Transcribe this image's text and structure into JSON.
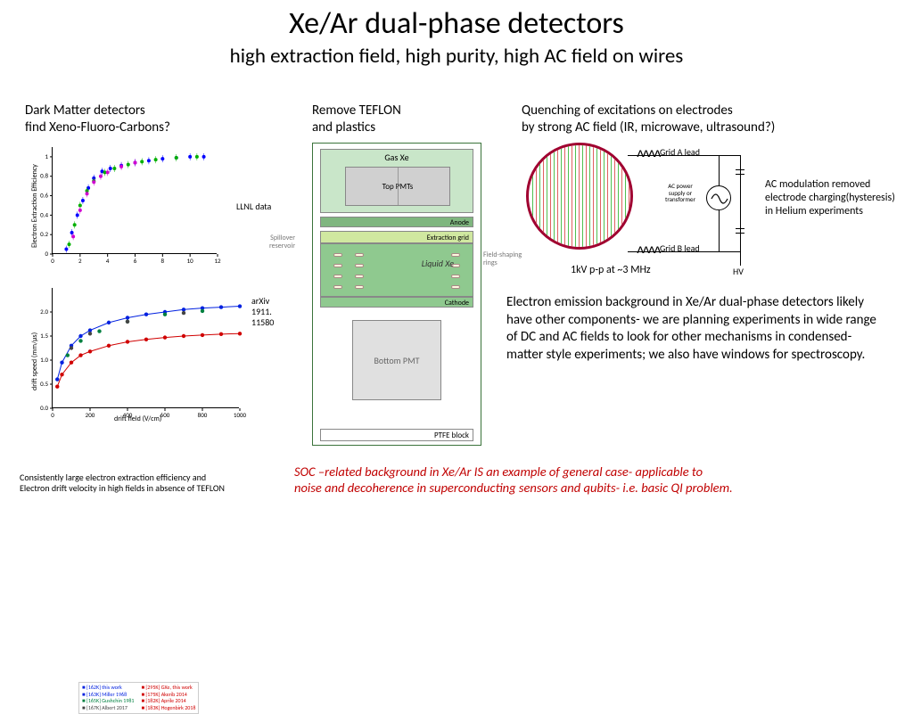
{
  "title": "Xe/Ar dual-phase detectors",
  "subtitle": "high extraction field, high purity, high AC field on wires",
  "col1_header": "Dark Matter detectors\nfind Xeno-Fluoro-Carbons?",
  "col2_header": "Remove TEFLON\nand plastics",
  "col3_header": "Quenching of excitations on electrodes\nby strong AC field (IR, microwave, ultrasound?)",
  "chart1": {
    "type": "scatter",
    "ylabel": "Electron Extraction Efficiency",
    "xlim": [
      0,
      12
    ],
    "ylim": [
      0,
      1.1
    ],
    "xticks": [
      0,
      2,
      4,
      6,
      8,
      10,
      12
    ],
    "yticks": [
      0,
      0.2,
      0.4,
      0.6,
      0.8,
      1
    ],
    "series": [
      {
        "color": "#0000ff",
        "marker": "circle",
        "x": [
          1.0,
          1.4,
          1.8,
          2.2,
          2.6,
          3.0,
          3.6,
          4.2,
          5.0,
          6.0,
          7.0,
          8.0,
          9.0,
          10.0,
          11.0
        ],
        "y": [
          0.05,
          0.22,
          0.4,
          0.55,
          0.68,
          0.78,
          0.85,
          0.88,
          0.91,
          0.94,
          0.96,
          0.98,
          0.99,
          1.0,
          1.0
        ]
      },
      {
        "color": "#00b000",
        "marker": "circle",
        "x": [
          1.2,
          1.6,
          2.0,
          2.5,
          3.0,
          3.8,
          4.5,
          5.5,
          6.5,
          7.5,
          9.0,
          10.5
        ],
        "y": [
          0.1,
          0.3,
          0.5,
          0.65,
          0.75,
          0.84,
          0.88,
          0.92,
          0.95,
          0.97,
          0.99,
          1.0
        ]
      },
      {
        "color": "#d000d0",
        "marker": "square",
        "x": [
          1.5,
          2.0,
          2.5,
          3.0,
          3.5,
          4.0,
          5.0,
          6.0
        ],
        "y": [
          0.18,
          0.45,
          0.62,
          0.74,
          0.8,
          0.84,
          0.9,
          0.94
        ]
      }
    ],
    "annotation": "LLNL data"
  },
  "chart2": {
    "type": "scatter-line",
    "xlabel": "drift field (V/cm)",
    "ylabel": "drift speed (mm/μs)",
    "xlim": [
      0,
      1000
    ],
    "ylim": [
      0.0,
      2.5
    ],
    "xticks": [
      0,
      200,
      400,
      600,
      800,
      1000
    ],
    "yticks": [
      0.0,
      0.5,
      1.0,
      1.5,
      2.0
    ],
    "series": [
      {
        "color": "#0020e0",
        "marker": "circle",
        "line": true,
        "x": [
          25,
          50,
          100,
          150,
          200,
          300,
          400,
          500,
          600,
          700,
          800,
          900,
          1000
        ],
        "y": [
          0.6,
          0.95,
          1.3,
          1.5,
          1.62,
          1.78,
          1.88,
          1.95,
          2.0,
          2.05,
          2.08,
          2.1,
          2.12
        ]
      },
      {
        "color": "#d00000",
        "marker": "square",
        "line": true,
        "x": [
          25,
          50,
          100,
          150,
          200,
          300,
          400,
          500,
          600,
          700,
          800,
          900,
          1000
        ],
        "y": [
          0.45,
          0.7,
          0.95,
          1.1,
          1.18,
          1.3,
          1.38,
          1.43,
          1.47,
          1.5,
          1.52,
          1.54,
          1.55
        ]
      },
      {
        "color": "#008040",
        "marker": "diamond",
        "line": false,
        "x": [
          80,
          150,
          250,
          400,
          600,
          800
        ],
        "y": [
          1.1,
          1.4,
          1.6,
          1.8,
          1.95,
          2.02
        ]
      },
      {
        "color": "#444444",
        "marker": "triangle",
        "line": false,
        "x": [
          100,
          200,
          400,
          700
        ],
        "y": [
          1.25,
          1.55,
          1.8,
          1.98
        ]
      }
    ],
    "legend": [
      "[162K] this work",
      "[295K] GXe, this work",
      "[163K] Miller 1968",
      "[175K] Akerib 2014",
      "[165K] Gushchin 1981",
      "[182K] Aprile 2014",
      "[167K] Albert 2017",
      "[183K] Hogenbirk 2018"
    ],
    "legend_colors": [
      "#0020e0",
      "#d00000",
      "#0020e0",
      "#d00000",
      "#008040",
      "#d00000",
      "#444444",
      "#d00000"
    ],
    "annotation": "arXiv\n1911.\n11580"
  },
  "caption1": "Consistently large electron extraction efficiency and\nElectron drift velocity in high fields in absence of TEFLON",
  "diagram": {
    "gas": "Gas Xe",
    "toppmt": "Top PMTs",
    "anode": "Anode",
    "extraction": "Extraction grid",
    "liquid": "Liquid Xe",
    "cathode": "Cathode",
    "bottom": "Bottom PMT",
    "ptfe": "PTFE block",
    "spillover": "Spillover\nreservoir",
    "fsr": "Field-shaping\nrings",
    "border_color": "#3b733b",
    "gas_bg": "#c9e6c9",
    "liquid_bg": "#8fc98f",
    "pmt_bg": "#d0d0d0"
  },
  "circuit": {
    "circle_border": "#a00030",
    "grid_colors_a": "#e06060",
    "grid_colors_b": "#50c050",
    "gridA": "Grid A lead",
    "gridB": "Grid B lead",
    "ac": "AC power\nsupply or\ntransformer",
    "kv": "1kV p-p  at ~3 MHz",
    "hv": "HV",
    "note": "AC  modulation removed\nelectrode charging(hysteresis)\nin Helium experiments"
  },
  "body_text": "Electron emission background in Xe/Ar dual-phase detectors likely have other  components- we are planning experiments in wide range of DC and AC fields to  look for other  mechanisms in  condensed-matter style experiments; we also have windows  for spectroscopy.",
  "soc_text": "SOC –related background in Xe/Ar  IS an example of general case- applicable to\n noise and decoherence in superconducting sensors and qubits- i.e. basic  QI problem.",
  "colors": {
    "soc": "#c00000",
    "background": "#ffffff"
  }
}
